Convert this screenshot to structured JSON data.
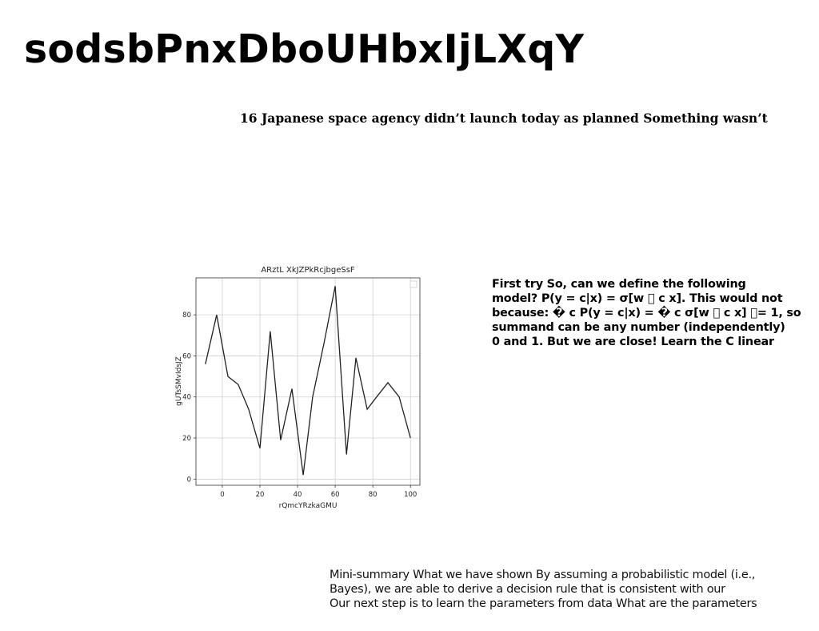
{
  "page": {
    "title": "sodsbPnxDboUHbxIjLXqY",
    "subtitle": "16 Japanese space agency didn’t launch today as planned Something wasn’t"
  },
  "right_text": {
    "lines": [
      "First try So, can we define the following",
      "model? P(y = c|x) = σ[w ⃨ c x]. This would not",
      "because: � c P(y = c|x) = � c σ[w ⃨ c x] ⃨= 1, so",
      "summand can be any number (independently)",
      "0 and 1. But we are close! Learn the C linear"
    ]
  },
  "bottom_text": {
    "lines": [
      "Mini-summary What we have shown By assuming a probabilistic model (i.e.,",
      "Bayes), we are able to derive a decision rule that is consistent with our",
      "Our next step is to learn the parameters from data What are the parameters"
    ]
  },
  "chart_data": {
    "type": "line",
    "title": "ARztL XkJZPkRcjbgeSsF",
    "xlabel": "rQmcYRzkaGMU",
    "ylabel": "gUTsSMvIdsJZ",
    "xlim": [
      -14,
      105
    ],
    "ylim": [
      -3,
      98
    ],
    "xticks": [
      0,
      20,
      40,
      60,
      80,
      100
    ],
    "yticks": [
      0,
      20,
      40,
      60,
      80
    ],
    "grid": true,
    "legend": "top-right (empty)",
    "series_color": "#222222",
    "x": [
      -9,
      -3,
      3,
      8.5,
      14,
      20,
      25.5,
      31,
      37,
      43,
      48,
      54,
      60,
      66,
      71,
      77,
      82,
      88,
      94,
      100
    ],
    "y": [
      56,
      80,
      50,
      46,
      34,
      15,
      72,
      19,
      44,
      2,
      40,
      66,
      94,
      12,
      59,
      34,
      40,
      47,
      40,
      20
    ]
  }
}
